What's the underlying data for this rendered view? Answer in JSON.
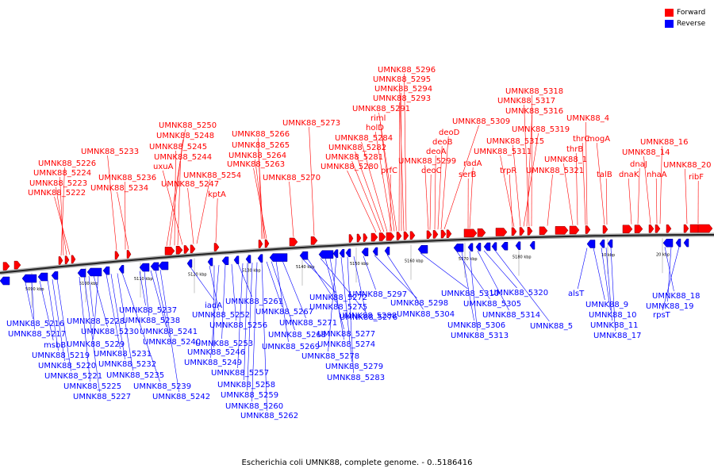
{
  "legend": {
    "forward": {
      "label": "Forward",
      "color": "#ff0000"
    },
    "reverse": {
      "label": "Reverse",
      "color": "#0000ff"
    }
  },
  "caption": "Escherichia coli UMNK88, complete genome. - 0..5186416",
  "scale": {
    "ticks": [
      "5090 kbp",
      "5100 kbp",
      "5110 kbp",
      "5120 kbp",
      "5130 kbp",
      "5140 kbp",
      "5150 kbp",
      "5160 kbp",
      "5170 kbp",
      "5180 kbp",
      "10 kbp",
      "20 kbp"
    ]
  },
  "forward_genes": [
    "UMNK88_5296",
    "UMNK88_5295",
    "UMNK88_5294",
    "UMNK88_5293",
    "UMNK88_5291",
    "riml",
    "holD",
    "UMNK88_5284",
    "UMNK88_5282",
    "UMNK88_5281",
    "UMNK88_5280",
    "prfC",
    "UMNK88_5318",
    "UMNK88_5317",
    "UMNK88_5316",
    "UMNK88_5309",
    "deoD",
    "deoB",
    "deoA",
    "UMNK88_5299",
    "deoC",
    "UMNK88_5319",
    "UMNK88_5315",
    "UMNK88_5311",
    "trpR",
    "UMNK88_5321",
    "UMNK88_4",
    "thrC",
    "thrB",
    "UMNK88_1",
    "mogA",
    "talB",
    "dnaJ",
    "dnaK",
    "UMNK88_16",
    "UMNK88_14",
    "nhaA",
    "UMNK88_20",
    "ribF",
    "radA",
    "serB",
    "UMNK88_5273",
    "UMNK88_5266",
    "UMNK88_5265",
    "UMNK88_5264",
    "UMNK88_5263",
    "UMNK88_5270",
    "UMNK88_5250",
    "UMNK88_5248",
    "UMNK88_5245",
    "UMNK88_5244",
    "uxuA",
    "UMNK88_5247",
    "UMNK88_5254",
    "kptA",
    "UMNK88_5233",
    "UMNK88_5236",
    "UMNK88_5234",
    "UMNK88_5226",
    "UMNK88_5224",
    "UMNK88_5223",
    "UMNK88_5222"
  ],
  "reverse_genes": [
    "UMNK88_5216",
    "UMNK88_5217",
    "msbB",
    "UMNK88_5219",
    "UMNK88_5220",
    "UMNK88_5221",
    "UMNK88_5225",
    "UMNK88_5227",
    "UMNK88_5228",
    "UMNK88_5230",
    "UMNK88_5229",
    "UMNK88_5231",
    "UMNK88_5232",
    "UMNK88_5235",
    "UMNK88_5239",
    "UMNK88_5237",
    "UMNK88_5238",
    "UMNK88_5241",
    "UMNK88_5240",
    "UMNK88_5242",
    "iadA",
    "UMNK88_5252",
    "UMNK88_5246",
    "UMNK88_5249",
    "UMNK88_5253",
    "UMNK88_5256",
    "UMNK88_5261",
    "UMNK88_5257",
    "UMNK88_5258",
    "UMNK88_5259",
    "UMNK88_5260",
    "UMNK88_5262",
    "UMNK88_5267",
    "UMNK88_5268",
    "UMNK88_5269",
    "UMNK88_5271",
    "UMNK88_5272",
    "UMNK88_5275",
    "UMNK88_5276",
    "UMNK88_5277",
    "UMNK88_5274",
    "UMNK88_5278",
    "UMNK88_5279",
    "UMNK88_5283",
    "UMNK88_5288",
    "UMNK88_5297",
    "UMNK88_5298",
    "UMNK88_5304",
    "UMNK88_5310",
    "UMNK88_5305",
    "UMNK88_5306",
    "UMNK88_5313",
    "UMNK88_5314",
    "UMNK88_5320",
    "UMNK88_5",
    "alsT",
    "UMNK88_9",
    "UMNK88_10",
    "UMNK88_11",
    "UMNK88_17",
    "UMNK88_18",
    "UMNK88_19",
    "rpsT"
  ]
}
